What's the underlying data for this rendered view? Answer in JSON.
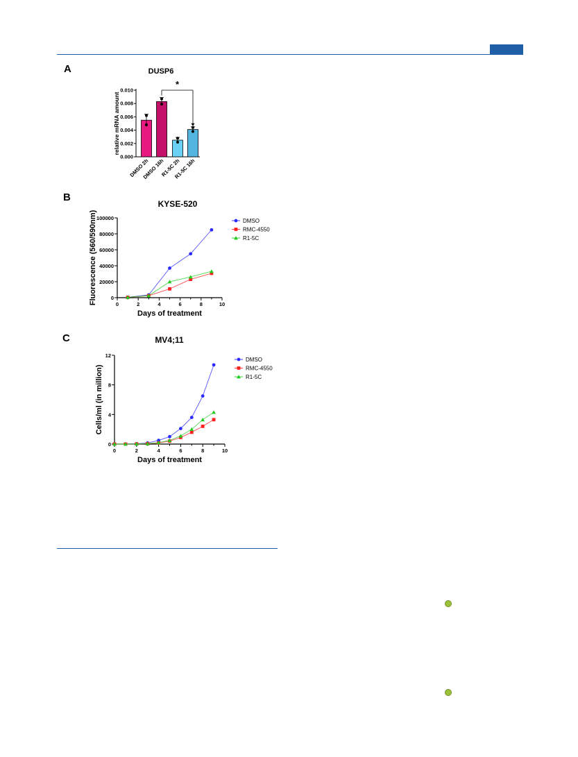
{
  "colors": {
    "rule": "#1f5fa8",
    "marker": "#9cc23c",
    "dmso_bar": "#e8197f",
    "dmso_bar_dark": "#c4126a",
    "r15c_bar": "#6ad0f5",
    "r15c_bar_dark": "#54b6e0",
    "dmso_line": "#2b2bff",
    "rmc_line": "#ff2020",
    "r15c_line": "#22cc22"
  },
  "icons": {
    "page_markers": [
      "green-circle-icon",
      "green-circle-icon"
    ]
  },
  "chart_data": [
    {
      "panel": "A",
      "type": "bar",
      "title": "DUSP6",
      "xlabel": "",
      "ylabel": "relative mRNA amount",
      "categories": [
        "DMSO 2h",
        "DMSO 16h",
        "R1-5C 2h",
        "R1-5C 16h"
      ],
      "values": [
        0.0055,
        0.0083,
        0.0025,
        0.0041
      ],
      "errors": [
        0.0009,
        0.0006,
        0.0004,
        0.0004
      ],
      "points": [
        [
          0.0062,
          0.0048
        ],
        [
          0.0087,
          0.0079
        ],
        [
          0.0028,
          0.0022
        ],
        [
          0.0044,
          0.0038
        ]
      ],
      "bar_colors": [
        "#e8197f",
        "#c4126a",
        "#6ad0f5",
        "#54b6e0"
      ],
      "ylim": [
        0,
        0.01
      ],
      "yticks": [
        "0.000",
        "0.002",
        "0.004",
        "0.006",
        "0.008",
        "0.010"
      ],
      "annotation": {
        "text": "*",
        "from": 1,
        "to": 3
      }
    },
    {
      "panel": "B",
      "type": "line",
      "title": "KYSE-520",
      "xlabel": "Days of treatment",
      "ylabel": "Fluorescence (560/590nm)",
      "xlim": [
        0,
        10
      ],
      "ylim": [
        0,
        100000
      ],
      "xticks": [
        "0",
        "2",
        "4",
        "6",
        "8",
        "10"
      ],
      "yticks": [
        "0",
        "20000",
        "40000",
        "60000",
        "80000",
        "100000"
      ],
      "legend_position": "right",
      "series": [
        {
          "name": "DMSO",
          "marker": "circle",
          "color": "#2b2bff",
          "x": [
            1,
            3,
            5,
            7,
            9
          ],
          "y": [
            500,
            3500,
            37000,
            55000,
            85000
          ]
        },
        {
          "name": "RMC-4550",
          "marker": "square",
          "color": "#ff2020",
          "x": [
            1,
            3,
            5,
            7,
            9
          ],
          "y": [
            500,
            2500,
            11000,
            23000,
            30500
          ]
        },
        {
          "name": "R1-5C",
          "marker": "triangle",
          "color": "#22cc22",
          "x": [
            1,
            3,
            5,
            7,
            9
          ],
          "y": [
            500,
            2500,
            20000,
            26000,
            33000
          ]
        }
      ]
    },
    {
      "panel": "C",
      "type": "line",
      "title": "MV4;11",
      "xlabel": "Days of treatment",
      "ylabel": "Cells/ml (in million)",
      "xlim": [
        0,
        10
      ],
      "ylim": [
        0,
        12
      ],
      "xticks": [
        "0",
        "2",
        "4",
        "6",
        "8",
        "10"
      ],
      "yticks": [
        "0",
        "4",
        "8",
        "12"
      ],
      "legend_position": "right",
      "series": [
        {
          "name": "DMSO",
          "marker": "circle",
          "color": "#2b2bff",
          "x": [
            0,
            1,
            2,
            3,
            4,
            5,
            6,
            7,
            8,
            9
          ],
          "y": [
            0,
            0,
            0.05,
            0.15,
            0.5,
            1.0,
            2.1,
            3.6,
            6.5,
            10.7
          ]
        },
        {
          "name": "RMC-4550",
          "marker": "square",
          "color": "#ff2020",
          "x": [
            0,
            1,
            2,
            3,
            4,
            5,
            6,
            7,
            8,
            9
          ],
          "y": [
            0,
            0,
            0.02,
            0.05,
            0.15,
            0.4,
            0.9,
            1.6,
            2.4,
            3.3
          ]
        },
        {
          "name": "R1-5C",
          "marker": "triangle",
          "color": "#22cc22",
          "x": [
            0,
            1,
            2,
            3,
            4,
            5,
            6,
            7,
            8,
            9
          ],
          "y": [
            0,
            0,
            0.02,
            0.05,
            0.2,
            0.5,
            1.1,
            2.0,
            3.3,
            4.3
          ]
        }
      ]
    }
  ]
}
